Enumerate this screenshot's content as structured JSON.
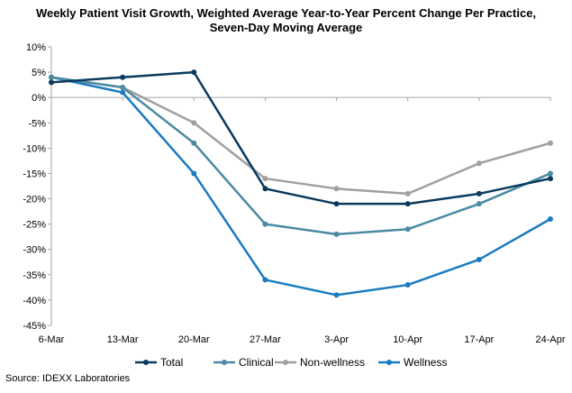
{
  "chart_data": {
    "type": "line",
    "title": "Weekly Patient Visit Growth, Weighted Average Year-to-Year Percent Change Per Practice,",
    "subtitle": "Seven-Day Moving Average",
    "categories": [
      "6-Mar",
      "13-Mar",
      "20-Mar",
      "27-Mar",
      "3-Apr",
      "10-Apr",
      "17-Apr",
      "24-Apr"
    ],
    "y_ticks": [
      "10%",
      "5%",
      "0%",
      "-5%",
      "-10%",
      "-15%",
      "-20%",
      "-25%",
      "-30%",
      "-35%",
      "-40%",
      "-45%"
    ],
    "ylim": [
      -45,
      10
    ],
    "ystep": 5,
    "grid": false,
    "legend_position": "bottom",
    "series": [
      {
        "name": "Total",
        "color": "#0b3a5e",
        "values": [
          3,
          4,
          5,
          -18,
          -21,
          -21,
          -19,
          -16
        ]
      },
      {
        "name": "Clinical",
        "color": "#4a8aa2",
        "values": [
          4,
          2,
          -9,
          -25,
          -27,
          -26,
          -21,
          -15
        ]
      },
      {
        "name": "Non-wellness",
        "color": "#a0a0a0",
        "values": [
          4,
          2,
          -5,
          -16,
          -18,
          -19,
          -13,
          -9
        ]
      },
      {
        "name": "Wellness",
        "color": "#1a7bc0",
        "values": [
          4,
          1,
          -15,
          -36,
          -39,
          -37,
          -32,
          -24
        ]
      }
    ]
  },
  "source": "Source: IDEXX Laboratories"
}
